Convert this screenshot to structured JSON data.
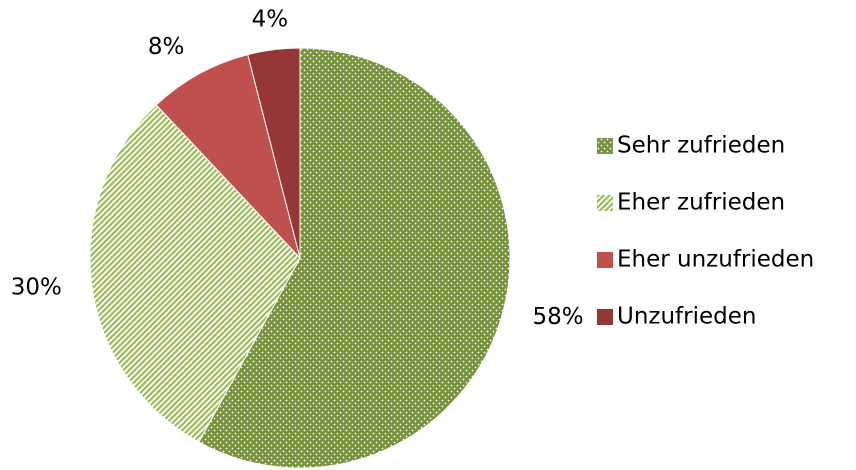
{
  "chart_data": {
    "type": "pie",
    "categories": [
      "Sehr zufrieden",
      "Eher zufrieden",
      "Eher unzufrieden",
      "Unzufrieden"
    ],
    "values": [
      58,
      30,
      8,
      4
    ],
    "value_labels": [
      "58%",
      "30%",
      "8%",
      "4%"
    ],
    "colors": [
      "#77933c",
      "#9bbb59",
      "#c0504d",
      "#953735"
    ],
    "patterns": [
      "dotted",
      "striped",
      "solid",
      "solid"
    ],
    "legend": "right"
  }
}
